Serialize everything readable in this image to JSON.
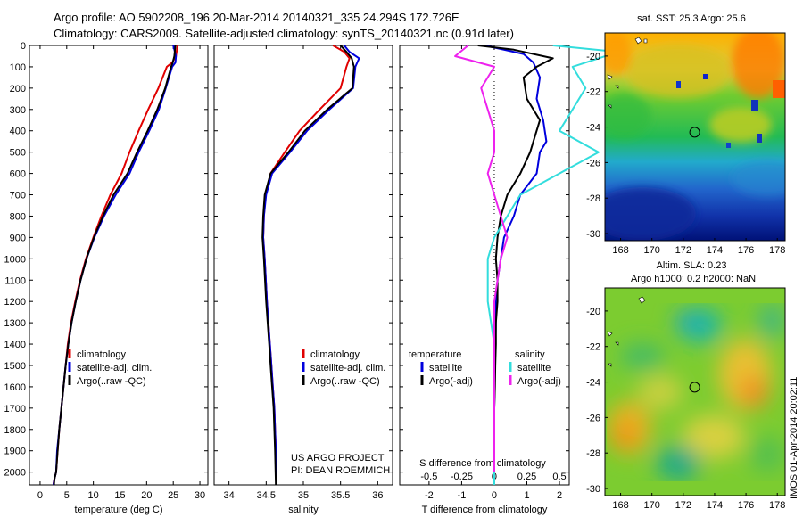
{
  "header": {
    "line1": "Argo profile: AO 5902208_196 20-Mar-2014 20140321_335 24.294S 172.726E",
    "line2": "Climatology: CARS2009. Satellite-adjusted climatology: synTS_20140321.nc (0.91d later)"
  },
  "side_text": "IMOS 01-Apr-2014 20:02:11",
  "colors": {
    "climatology": "#e00000",
    "satellite": "#0000dd",
    "argo": "#000000",
    "sal_satellite": "#33dddd",
    "sal_argo": "#ee22ee"
  },
  "chart_data": [
    {
      "type": "line",
      "xlabel": "temperature (deg C)",
      "xticks": [
        "0",
        "5",
        "10",
        "15",
        "20",
        "25",
        "30"
      ],
      "xlim": [
        -2,
        31.5
      ],
      "ylim": [
        0,
        2060
      ],
      "yticks": [
        "0",
        "100",
        "200",
        "300",
        "400",
        "500",
        "600",
        "700",
        "800",
        "900",
        "1000",
        "1100",
        "1200",
        "1300",
        "1400",
        "1500",
        "1600",
        "1700",
        "1800",
        "1900",
        "2000"
      ],
      "y_reversed": true,
      "legend": [
        "climatology",
        "satellite-adj. clim.",
        "Argo(..raw -QC)"
      ],
      "series": [
        {
          "name": "climatology",
          "color": "#e00000",
          "x": [
            25.8,
            25.5,
            24.8,
            23.8,
            22.2,
            20.3,
            18.5,
            16.8,
            15.3,
            13.2,
            11.5,
            10.0,
            8.6,
            7.5,
            6.6,
            5.8,
            5.2,
            4.8,
            4.4,
            4.0,
            3.6,
            3.3,
            3.0,
            2.8,
            2.6,
            2.5
          ],
          "y": [
            0,
            50,
            80,
            100,
            200,
            300,
            400,
            500,
            600,
            700,
            800,
            900,
            1000,
            1100,
            1200,
            1300,
            1400,
            1500,
            1600,
            1700,
            1800,
            1900,
            2000,
            2020,
            2040,
            2060
          ]
        },
        {
          "name": "satellite-adj. clim.",
          "color": "#0000dd",
          "x": [
            25.0,
            25.5,
            25.4,
            24.8,
            23.6,
            22.3,
            20.5,
            18.5,
            16.8,
            14.2,
            12.0,
            10.2,
            8.7,
            7.6,
            6.7,
            5.9,
            5.3,
            4.8,
            4.4,
            4.0,
            3.6,
            3.2,
            3.0,
            2.7,
            2.5
          ],
          "y": [
            0,
            50,
            80,
            100,
            200,
            300,
            400,
            500,
            600,
            700,
            800,
            900,
            1000,
            1100,
            1200,
            1300,
            1400,
            1500,
            1600,
            1700,
            1800,
            1900,
            2000,
            2030,
            2060
          ]
        },
        {
          "name": "Argo(..raw -QC)",
          "color": "#000000",
          "x": [
            25.4,
            25.2,
            24.9,
            24.6,
            23.5,
            22.0,
            20.2,
            18.2,
            16.4,
            13.8,
            11.8,
            10.1,
            8.7,
            7.6,
            6.7,
            5.9,
            5.3,
            4.8,
            4.4,
            4.0,
            3.6,
            3.3,
            3.0,
            2.7,
            2.6
          ],
          "y": [
            0,
            50,
            80,
            100,
            200,
            300,
            400,
            500,
            600,
            700,
            800,
            900,
            1000,
            1100,
            1200,
            1300,
            1400,
            1500,
            1600,
            1700,
            1800,
            1900,
            2000,
            2030,
            2060
          ]
        }
      ]
    },
    {
      "type": "line",
      "xlabel": "salinity",
      "xticks": [
        "34",
        "34.5",
        "35",
        "35.5",
        "36"
      ],
      "xlim": [
        33.8,
        36.2
      ],
      "ylim": [
        0,
        2060
      ],
      "y_reversed": true,
      "legend": [
        "climatology",
        "satellite-adj. clim.",
        "Argo(..raw -QC)"
      ],
      "annotation": [
        "US ARGO PROJECT",
        "PI: DEAN ROEMMICH"
      ],
      "series": [
        {
          "name": "climatology",
          "color": "#e00000",
          "x": [
            35.4,
            35.55,
            35.62,
            35.58,
            35.5,
            35.22,
            34.95,
            34.75,
            34.56,
            34.49,
            34.47,
            34.46,
            34.48,
            34.51,
            34.53,
            34.55,
            34.57,
            34.59,
            34.61,
            34.62,
            34.63,
            34.64
          ],
          "y": [
            0,
            30,
            60,
            100,
            200,
            300,
            400,
            500,
            600,
            700,
            800,
            900,
            1000,
            1200,
            1300,
            1400,
            1500,
            1600,
            1700,
            1800,
            1900,
            2060
          ]
        },
        {
          "name": "satellite-adj. clim.",
          "color": "#0000dd",
          "x": [
            35.55,
            35.62,
            35.75,
            35.7,
            35.67,
            35.35,
            35.05,
            34.82,
            34.58,
            34.5,
            34.47,
            34.46,
            34.48,
            34.51,
            34.53,
            34.55,
            34.57,
            34.59,
            34.61,
            34.62,
            34.63,
            34.64
          ],
          "y": [
            0,
            30,
            60,
            100,
            200,
            300,
            400,
            500,
            600,
            700,
            800,
            900,
            1000,
            1200,
            1300,
            1400,
            1500,
            1600,
            1700,
            1800,
            1900,
            2060
          ]
        },
        {
          "name": "Argo(..raw -QC)",
          "color": "#000000",
          "x": [
            35.5,
            35.58,
            35.65,
            35.68,
            35.66,
            35.32,
            35.02,
            34.8,
            34.56,
            34.48,
            34.46,
            34.45,
            34.47,
            34.5,
            34.52,
            34.54,
            34.56,
            34.58,
            34.6,
            34.61,
            34.62,
            34.63
          ],
          "y": [
            0,
            30,
            60,
            100,
            200,
            300,
            400,
            500,
            600,
            700,
            800,
            900,
            1000,
            1200,
            1300,
            1400,
            1500,
            1600,
            1700,
            1800,
            1900,
            2060
          ]
        }
      ]
    },
    {
      "type": "line",
      "xlabel": "T difference from climatology",
      "xlabel_top": "S difference from climatology",
      "xticks": [
        "-2",
        "-1",
        "0",
        "1",
        "2"
      ],
      "xticks_top": [
        "-0.5",
        "-0.25",
        "0",
        "0.25",
        "0.5"
      ],
      "xlim": [
        -2.9,
        2.3
      ],
      "ylim": [
        0,
        2060
      ],
      "y_reversed": true,
      "legend_groups": [
        {
          "title": "temperature",
          "items": [
            "satellite",
            "Argo(-adj)"
          ]
        },
        {
          "title": "salinity",
          "items": [
            "satellite",
            "Argo(-adj)"
          ]
        }
      ],
      "series": [
        {
          "name": "temperature satellite",
          "color": "#0000dd",
          "x": [
            -0.3,
            0.3,
            0.9,
            1.2,
            1.4,
            1.3,
            1.5,
            1.6,
            1.4,
            1.3,
            0.8,
            0.6,
            0.3,
            0.2,
            0.1,
            0.05,
            0.05,
            0.02,
            0.0,
            0.0,
            0.0,
            0.0
          ],
          "y": [
            0,
            20,
            40,
            80,
            150,
            250,
            350,
            450,
            500,
            600,
            700,
            800,
            900,
            1000,
            1100,
            1200,
            1300,
            1500,
            1700,
            1900,
            2000,
            2060
          ]
        },
        {
          "name": "temperature Argo(-adj)",
          "color": "#000000",
          "x": [
            -0.5,
            0.6,
            1.8,
            1.3,
            0.9,
            1.0,
            1.4,
            1.2,
            1.1,
            0.8,
            0.4,
            0.2,
            0.1,
            0.05,
            0.1,
            0.1,
            0.05,
            0.05,
            0.03,
            0.02,
            0.0,
            0.0
          ],
          "y": [
            0,
            20,
            60,
            100,
            150,
            250,
            350,
            450,
            500,
            600,
            700,
            800,
            900,
            1000,
            1100,
            1200,
            1300,
            1400,
            1500,
            1600,
            1700,
            1800
          ]
        },
        {
          "name": "salinity satellite",
          "color": "#33dddd",
          "x": [
            0.45,
            0.95,
            0.8,
            0.6,
            0.7,
            0.6,
            0.5,
            0.8,
            0.5,
            0.2,
            0.1,
            0.0,
            -0.05,
            -0.05,
            -0.05,
            0.0,
            0.0,
            0.0,
            0.0,
            0.0
          ],
          "y": [
            0,
            30,
            60,
            100,
            200,
            300,
            400,
            500,
            600,
            700,
            800,
            900,
            1000,
            1100,
            1200,
            1400,
            1600,
            1800,
            1900,
            2060
          ]
        },
        {
          "name": "salinity Argo(-adj)",
          "color": "#ee22ee",
          "x": [
            -0.2,
            -0.3,
            0.0,
            -0.1,
            -0.05,
            0.0,
            0.0,
            -0.05,
            0.0,
            0.05,
            0.1,
            0.05,
            0.0,
            0.0,
            0.0,
            0.0,
            0.0
          ],
          "y": [
            0,
            50,
            100,
            200,
            300,
            400,
            500,
            600,
            700,
            800,
            900,
            1000,
            1200,
            1400,
            1600,
            1800,
            2000
          ]
        }
      ]
    },
    {
      "type": "heatmap",
      "title": "sat. SST: 25.3  Argo: 25.6",
      "xticks": [
        "168",
        "170",
        "172",
        "174",
        "176",
        "178"
      ],
      "yticks": [
        "-20",
        "-22",
        "-24",
        "-26",
        "-28",
        "-30"
      ],
      "xlim": [
        167,
        178.5
      ],
      "ylim": [
        -30.4,
        -18.7
      ],
      "marker": {
        "lon": 172.726,
        "lat": -24.294
      }
    },
    {
      "type": "heatmap",
      "title": "Altim. SLA: 0.23",
      "subtitle": "Argo h1000: 0.2  h2000: NaN",
      "xticks": [
        "168",
        "170",
        "172",
        "174",
        "176",
        "178"
      ],
      "yticks": [
        "-20",
        "-22",
        "-24",
        "-26",
        "-28",
        "-30"
      ],
      "xlim": [
        167,
        178.5
      ],
      "ylim": [
        -30.4,
        -18.7
      ],
      "marker": {
        "lon": 172.726,
        "lat": -24.294
      }
    }
  ]
}
